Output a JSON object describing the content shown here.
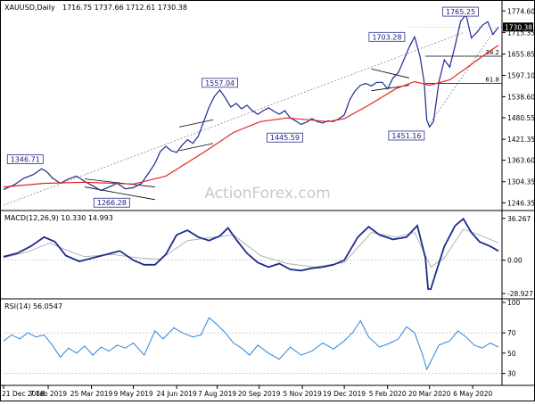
{
  "chart_data": [
    {
      "type": "line",
      "panel": "price",
      "title": "XAUUSD,Daily",
      "ohlc": "1716.75 1737.66 1712.61 1730.38",
      "watermark": "ActionForex.com",
      "ylim": [
        1230,
        1790
      ],
      "y_ticks": [
        "1774.60",
        "1715.35",
        "1655.85",
        "1597.10",
        "1538.60",
        "1480.55",
        "1421.35",
        "1363.60",
        "1304.35",
        "1246.35"
      ],
      "last_price": "1730.38",
      "x_labels": [
        "21 Dec 2018",
        "7 Feb 2019",
        "25 Mar 2019",
        "9 May 2019",
        "24 Jun 2019",
        "7 Aug 2019",
        "20 Sep 2019",
        "5 Nov 2019",
        "19 Dec 2019",
        "5 Feb 2020",
        "20 Mar 2020",
        "6 May 2020"
      ],
      "x_label_bars": [
        0,
        33,
        65,
        96,
        128,
        158,
        189,
        221,
        252,
        284,
        315,
        347
      ],
      "price_path": [
        [
          0,
          1283
        ],
        [
          8,
          1296
        ],
        [
          15,
          1314
        ],
        [
          22,
          1324
        ],
        [
          28,
          1340
        ],
        [
          32,
          1332
        ],
        [
          36,
          1315
        ],
        [
          42,
          1300
        ],
        [
          48,
          1312
        ],
        [
          54,
          1320
        ],
        [
          60,
          1305
        ],
        [
          66,
          1293
        ],
        [
          72,
          1280
        ],
        [
          78,
          1290
        ],
        [
          84,
          1300
        ],
        [
          90,
          1285
        ],
        [
          96,
          1288
        ],
        [
          102,
          1300
        ],
        [
          108,
          1332
        ],
        [
          112,
          1355
        ],
        [
          116,
          1388
        ],
        [
          120,
          1402
        ],
        [
          124,
          1390
        ],
        [
          128,
          1385
        ],
        [
          132,
          1405
        ],
        [
          136,
          1420
        ],
        [
          140,
          1410
        ],
        [
          144,
          1430
        ],
        [
          148,
          1470
        ],
        [
          152,
          1510
        ],
        [
          156,
          1540
        ],
        [
          160,
          1557
        ],
        [
          164,
          1535
        ],
        [
          168,
          1510
        ],
        [
          172,
          1520
        ],
        [
          176,
          1505
        ],
        [
          180,
          1515
        ],
        [
          184,
          1500
        ],
        [
          188,
          1490
        ],
        [
          192,
          1500
        ],
        [
          196,
          1508
        ],
        [
          200,
          1498
        ],
        [
          204,
          1490
        ],
        [
          208,
          1500
        ],
        [
          212,
          1480
        ],
        [
          216,
          1472
        ],
        [
          220,
          1462
        ],
        [
          224,
          1468
        ],
        [
          228,
          1478
        ],
        [
          232,
          1470
        ],
        [
          236,
          1466
        ],
        [
          240,
          1472
        ],
        [
          244,
          1470
        ],
        [
          248,
          1478
        ],
        [
          252,
          1488
        ],
        [
          256,
          1530
        ],
        [
          260,
          1555
        ],
        [
          264,
          1570
        ],
        [
          268,
          1575
        ],
        [
          272,
          1568
        ],
        [
          276,
          1578
        ],
        [
          280,
          1578
        ],
        [
          284,
          1560
        ],
        [
          288,
          1590
        ],
        [
          292,
          1605
        ],
        [
          296,
          1640
        ],
        [
          300,
          1675
        ],
        [
          304,
          1703
        ],
        [
          308,
          1650
        ],
        [
          311,
          1580
        ],
        [
          313,
          1475
        ],
        [
          315,
          1455
        ],
        [
          318,
          1470
        ],
        [
          322,
          1580
        ],
        [
          326,
          1640
        ],
        [
          330,
          1620
        ],
        [
          334,
          1680
        ],
        [
          338,
          1745
        ],
        [
          342,
          1765
        ],
        [
          346,
          1700
        ],
        [
          350,
          1715
        ],
        [
          354,
          1735
        ],
        [
          358,
          1745
        ],
        [
          362,
          1710
        ],
        [
          366,
          1730
        ]
      ],
      "sma_path": [
        [
          0,
          1290
        ],
        [
          30,
          1300
        ],
        [
          60,
          1303
        ],
        [
          96,
          1298
        ],
        [
          120,
          1320
        ],
        [
          150,
          1390
        ],
        [
          170,
          1440
        ],
        [
          190,
          1470
        ],
        [
          210,
          1480
        ],
        [
          240,
          1470
        ],
        [
          252,
          1478
        ],
        [
          270,
          1515
        ],
        [
          290,
          1560
        ],
        [
          304,
          1580
        ],
        [
          315,
          1570
        ],
        [
          330,
          1585
        ],
        [
          345,
          1625
        ],
        [
          358,
          1660
        ],
        [
          366,
          1680
        ]
      ],
      "annotations": [
        {
          "label": "1346.71",
          "bar": 16,
          "price": 1346.71
        },
        {
          "label": "1266.28",
          "bar": 80,
          "price": 1266.28
        },
        {
          "label": "1557.04",
          "bar": 160,
          "price": 1557.04
        },
        {
          "label": "1445.59",
          "bar": 208,
          "price": 1445.59
        },
        {
          "label": "1703.28",
          "bar": 298,
          "price": 1703.28
        },
        {
          "label": "1451.16",
          "bar": 298,
          "price": 1451.16
        },
        {
          "label": "1765.25",
          "bar": 338,
          "price": 1765.25
        }
      ],
      "fib_levels": [
        {
          "label": "38.2",
          "price": 1650
        },
        {
          "label": "61.8",
          "price": 1575
        }
      ],
      "colors": {
        "price": "#1c2b8f",
        "sma": "#e52521",
        "ann_border": "#2b2f8e",
        "ann_text": "#1b2080",
        "axis": "#000000"
      }
    },
    {
      "type": "line",
      "panel": "macd",
      "title": "MACD(12,26,9) 10.330 14.993",
      "ylim": [
        -32,
        40
      ],
      "y_ticks": [
        "36.267",
        "0.00",
        "-28.927"
      ],
      "macd_path": [
        [
          0,
          3
        ],
        [
          10,
          6
        ],
        [
          20,
          12
        ],
        [
          30,
          20
        ],
        [
          38,
          16
        ],
        [
          46,
          4
        ],
        [
          56,
          -1
        ],
        [
          66,
          2
        ],
        [
          76,
          5
        ],
        [
          86,
          8
        ],
        [
          96,
          0
        ],
        [
          104,
          -4
        ],
        [
          112,
          -4
        ],
        [
          120,
          5
        ],
        [
          128,
          22
        ],
        [
          136,
          26
        ],
        [
          144,
          20
        ],
        [
          152,
          17
        ],
        [
          160,
          21
        ],
        [
          166,
          28
        ],
        [
          172,
          18
        ],
        [
          180,
          6
        ],
        [
          188,
          -2
        ],
        [
          196,
          -6
        ],
        [
          204,
          -3
        ],
        [
          212,
          -8
        ],
        [
          220,
          -9
        ],
        [
          228,
          -7
        ],
        [
          236,
          -6
        ],
        [
          244,
          -4
        ],
        [
          252,
          0
        ],
        [
          262,
          20
        ],
        [
          270,
          29
        ],
        [
          278,
          22
        ],
        [
          288,
          18
        ],
        [
          298,
          20
        ],
        [
          306,
          30
        ],
        [
          312,
          2
        ],
        [
          314,
          -25
        ],
        [
          316,
          -25
        ],
        [
          320,
          -10
        ],
        [
          326,
          12
        ],
        [
          334,
          30
        ],
        [
          340,
          36
        ],
        [
          346,
          24
        ],
        [
          352,
          16
        ],
        [
          360,
          12
        ],
        [
          366,
          8
        ]
      ],
      "signal_path": [
        [
          0,
          2
        ],
        [
          20,
          8
        ],
        [
          34,
          15
        ],
        [
          48,
          8
        ],
        [
          60,
          3
        ],
        [
          80,
          5
        ],
        [
          100,
          2
        ],
        [
          116,
          1
        ],
        [
          136,
          17
        ],
        [
          156,
          20
        ],
        [
          170,
          22
        ],
        [
          190,
          4
        ],
        [
          210,
          -3
        ],
        [
          230,
          -6
        ],
        [
          252,
          -2
        ],
        [
          272,
          24
        ],
        [
          290,
          20
        ],
        [
          304,
          24
        ],
        [
          316,
          -6
        ],
        [
          326,
          2
        ],
        [
          340,
          27
        ],
        [
          352,
          22
        ],
        [
          366,
          15
        ]
      ],
      "colors": {
        "macd": "#1c2b8f",
        "signal": "#b2b2b2"
      }
    },
    {
      "type": "line",
      "panel": "rsi",
      "title": "RSI(14) 56.0547",
      "ylim": [
        20,
        100
      ],
      "y_ticks": [
        "100",
        "70",
        "50",
        "30"
      ],
      "rsi_path": [
        [
          0,
          62
        ],
        [
          6,
          68
        ],
        [
          12,
          64
        ],
        [
          18,
          70
        ],
        [
          24,
          66
        ],
        [
          30,
          68
        ],
        [
          36,
          58
        ],
        [
          42,
          46
        ],
        [
          48,
          55
        ],
        [
          54,
          50
        ],
        [
          60,
          57
        ],
        [
          66,
          48
        ],
        [
          72,
          56
        ],
        [
          78,
          52
        ],
        [
          84,
          58
        ],
        [
          90,
          55
        ],
        [
          96,
          60
        ],
        [
          104,
          48
        ],
        [
          112,
          72
        ],
        [
          118,
          64
        ],
        [
          126,
          75
        ],
        [
          132,
          70
        ],
        [
          140,
          66
        ],
        [
          146,
          68
        ],
        [
          152,
          85
        ],
        [
          158,
          78
        ],
        [
          164,
          70
        ],
        [
          170,
          60
        ],
        [
          176,
          55
        ],
        [
          182,
          48
        ],
        [
          188,
          58
        ],
        [
          196,
          50
        ],
        [
          204,
          44
        ],
        [
          212,
          56
        ],
        [
          220,
          48
        ],
        [
          228,
          52
        ],
        [
          236,
          60
        ],
        [
          244,
          54
        ],
        [
          252,
          62
        ],
        [
          258,
          70
        ],
        [
          264,
          82
        ],
        [
          270,
          66
        ],
        [
          278,
          56
        ],
        [
          286,
          60
        ],
        [
          292,
          64
        ],
        [
          298,
          76
        ],
        [
          304,
          70
        ],
        [
          310,
          48
        ],
        [
          313,
          34
        ],
        [
          316,
          42
        ],
        [
          322,
          58
        ],
        [
          330,
          62
        ],
        [
          336,
          72
        ],
        [
          342,
          66
        ],
        [
          348,
          58
        ],
        [
          354,
          55
        ],
        [
          360,
          60
        ],
        [
          366,
          56
        ]
      ],
      "colors": {
        "rsi": "#2c86d8",
        "ref": "#9a9a9a"
      }
    }
  ]
}
